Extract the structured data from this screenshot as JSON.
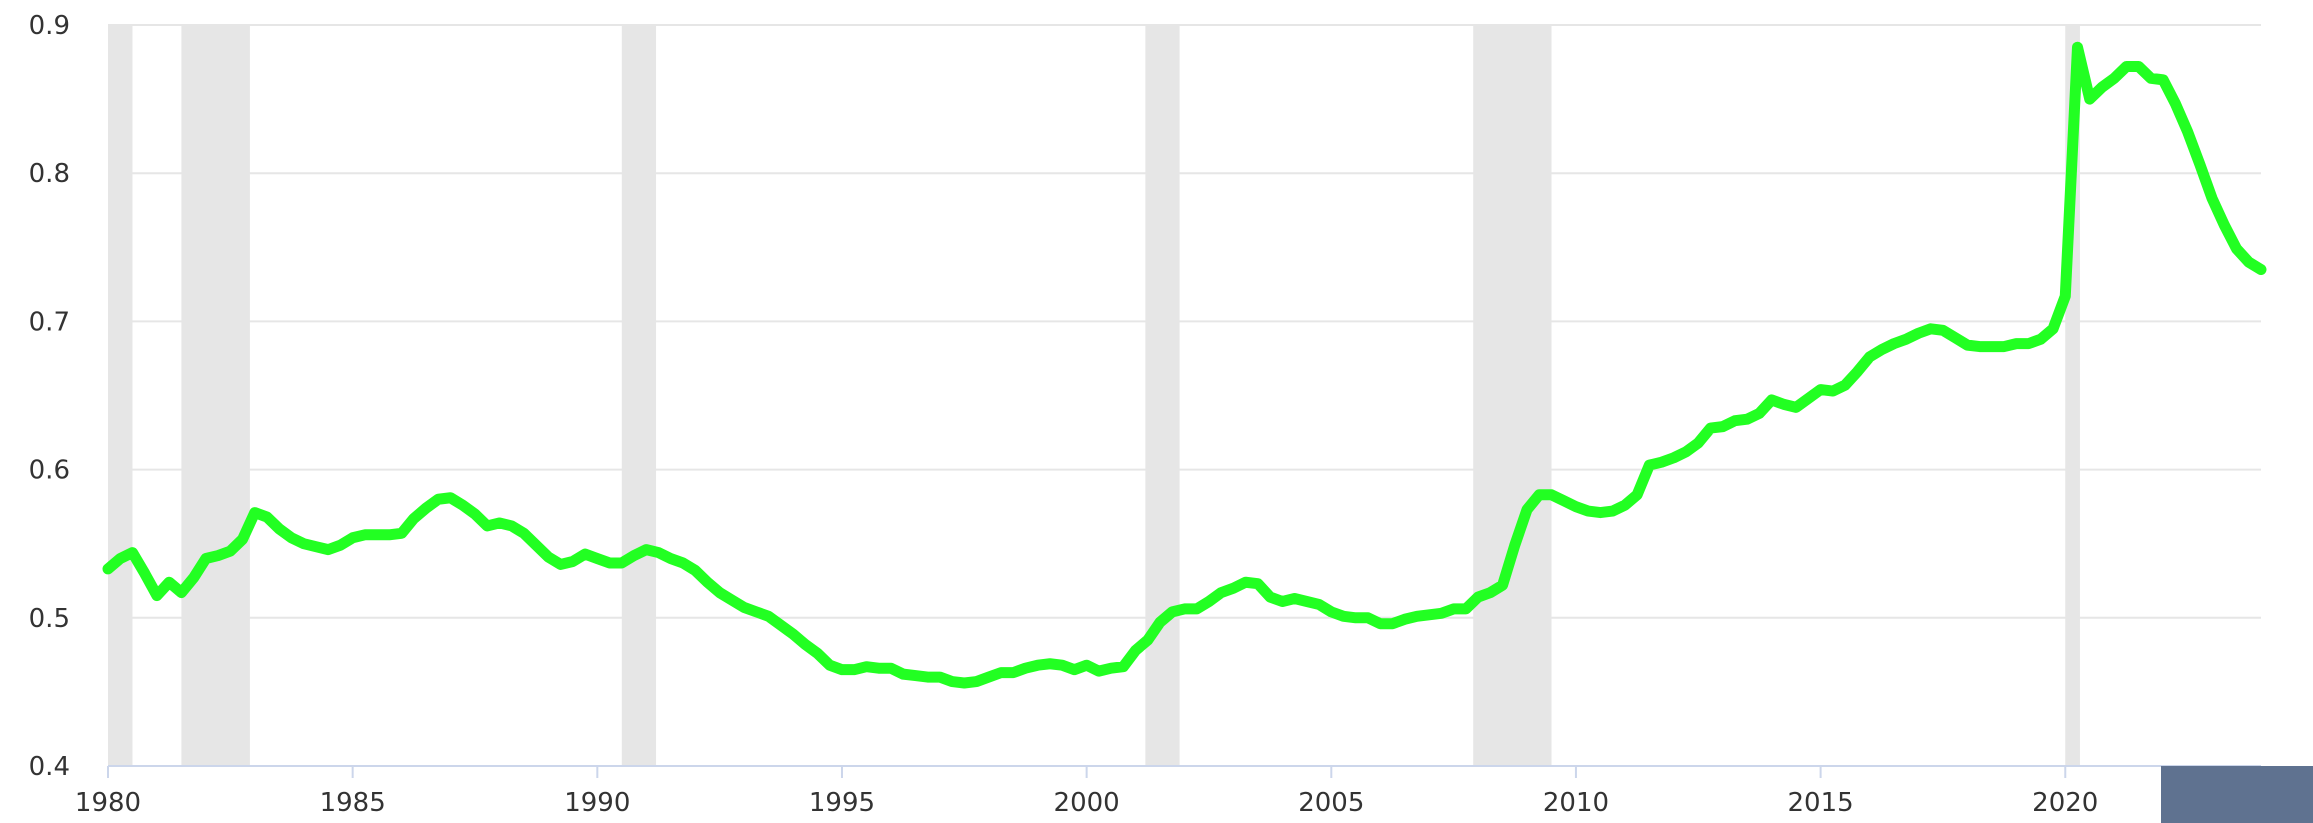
{
  "chart_data": {
    "type": "line",
    "title": "",
    "xlabel": "",
    "ylabel": "",
    "xlim": [
      1980.0,
      2024.0
    ],
    "ylim": [
      0.4,
      0.9
    ],
    "x_ticks": [
      1980,
      1985,
      1990,
      1995,
      2000,
      2005,
      2010,
      2015,
      2020
    ],
    "x_tick_labels": [
      "1980",
      "1985",
      "1990",
      "1995",
      "2000",
      "2005",
      "2010",
      "2015",
      "2020"
    ],
    "y_ticks": [
      0.4,
      0.5,
      0.6,
      0.7,
      0.8,
      0.9
    ],
    "y_tick_labels": [
      "0.4",
      "0.5",
      "0.6",
      "0.7",
      "0.8",
      "0.9"
    ],
    "grid": true,
    "legend": "none",
    "recession_periods": [
      [
        1980.0,
        1980.5
      ],
      [
        1981.5,
        1982.9
      ],
      [
        1990.5,
        1991.2
      ],
      [
        2001.2,
        2001.9
      ],
      [
        2007.9,
        2009.5
      ],
      [
        2020.0,
        2020.3
      ]
    ],
    "series": [
      {
        "color": "#22ff22",
        "x": [
          1980.0,
          1980.25,
          1980.5,
          1980.75,
          1981.0,
          1981.25,
          1981.5,
          1981.75,
          1982.0,
          1982.25,
          1982.5,
          1982.75,
          1983.0,
          1983.25,
          1983.5,
          1983.75,
          1984.0,
          1984.25,
          1984.5,
          1984.75,
          1985.0,
          1985.25,
          1985.5,
          1985.75,
          1986.0,
          1986.25,
          1986.5,
          1986.75,
          1987.0,
          1987.25,
          1987.5,
          1987.75,
          1988.0,
          1988.25,
          1988.5,
          1988.75,
          1989.0,
          1989.25,
          1989.5,
          1989.75,
          1990.0,
          1990.25,
          1990.5,
          1990.75,
          1991.0,
          1991.25,
          1991.5,
          1991.75,
          1992.0,
          1992.25,
          1992.5,
          1992.75,
          1993.0,
          1993.25,
          1993.5,
          1993.75,
          1994.0,
          1994.25,
          1994.5,
          1994.75,
          1995.0,
          1995.25,
          1995.5,
          1995.75,
          1996.0,
          1996.25,
          1996.5,
          1996.75,
          1997.0,
          1997.25,
          1997.5,
          1997.75,
          1998.0,
          1998.25,
          1998.5,
          1998.75,
          1999.0,
          1999.25,
          1999.5,
          1999.75,
          2000.0,
          2000.25,
          2000.5,
          2000.75,
          2001.0,
          2001.25,
          2001.5,
          2001.75,
          2002.0,
          2002.25,
          2002.5,
          2002.75,
          2003.0,
          2003.25,
          2003.5,
          2003.75,
          2004.0,
          2004.25,
          2004.5,
          2004.75,
          2005.0,
          2005.25,
          2005.5,
          2005.75,
          2006.0,
          2006.25,
          2006.5,
          2006.75,
          2007.0,
          2007.25,
          2007.5,
          2007.75,
          2008.0,
          2008.25,
          2008.5,
          2008.75,
          2009.0,
          2009.25,
          2009.5,
          2009.75,
          2010.0,
          2010.25,
          2010.5,
          2010.75,
          2011.0,
          2011.25,
          2011.5,
          2011.75,
          2012.0,
          2012.25,
          2012.5,
          2012.75,
          2013.0,
          2013.25,
          2013.5,
          2013.75,
          2014.0,
          2014.25,
          2014.5,
          2014.75,
          2015.0,
          2015.25,
          2015.5,
          2015.75,
          2016.0,
          2016.25,
          2016.5,
          2016.75,
          2017.0,
          2017.25,
          2017.5,
          2017.75,
          2018.0,
          2018.25,
          2018.5,
          2018.75,
          2019.0,
          2019.25,
          2019.5,
          2019.75,
          2020.0,
          2020.25,
          2020.5,
          2020.75,
          2021.0,
          2021.25,
          2021.5,
          2021.75,
          2022.0,
          2022.25,
          2022.5,
          2022.75,
          2023.0,
          2023.25,
          2023.5,
          2023.75,
          2024.0
        ],
        "values": [
          0.533,
          0.54,
          0.544,
          0.53,
          0.515,
          0.524,
          0.517,
          0.527,
          0.54,
          0.542,
          0.545,
          0.553,
          0.571,
          0.568,
          0.56,
          0.554,
          0.55,
          0.548,
          0.546,
          0.549,
          0.554,
          0.556,
          0.556,
          0.556,
          0.557,
          0.567,
          0.574,
          0.58,
          0.581,
          0.576,
          0.57,
          0.562,
          0.564,
          0.562,
          0.557,
          0.549,
          0.541,
          0.536,
          0.538,
          0.543,
          0.54,
          0.537,
          0.537,
          0.542,
          0.546,
          0.544,
          0.54,
          0.537,
          0.532,
          0.524,
          0.517,
          0.512,
          0.507,
          0.504,
          0.501,
          0.495,
          0.489,
          0.482,
          0.476,
          0.468,
          0.465,
          0.465,
          0.467,
          0.466,
          0.466,
          0.462,
          0.461,
          0.46,
          0.46,
          0.457,
          0.456,
          0.457,
          0.46,
          0.463,
          0.463,
          0.466,
          0.468,
          0.469,
          0.468,
          0.465,
          0.468,
          0.464,
          0.466,
          0.467,
          0.478,
          0.485,
          0.497,
          0.504,
          0.506,
          0.506,
          0.511,
          0.517,
          0.52,
          0.524,
          0.523,
          0.514,
          0.511,
          0.513,
          0.511,
          0.509,
          0.504,
          0.501,
          0.5,
          0.5,
          0.496,
          0.496,
          0.499,
          0.501,
          0.502,
          0.503,
          0.506,
          0.506,
          0.514,
          0.517,
          0.522,
          0.549,
          0.573,
          0.583,
          0.583,
          0.579,
          0.575,
          0.572,
          0.571,
          0.572,
          0.576,
          0.583,
          0.603,
          0.605,
          0.608,
          0.612,
          0.618,
          0.628,
          0.629,
          0.633,
          0.634,
          0.638,
          0.647,
          0.644,
          0.642,
          0.648,
          0.654,
          0.653,
          0.657,
          0.666,
          0.676,
          0.681,
          0.685,
          0.688,
          0.692,
          0.695,
          0.694,
          0.689,
          0.684,
          0.683,
          0.683,
          0.683,
          0.685,
          0.685,
          0.688,
          0.695,
          0.717,
          0.885,
          0.85,
          0.858,
          0.864,
          0.872,
          0.872,
          0.864,
          0.863,
          0.847,
          0.828,
          0.806,
          0.783,
          0.765,
          0.749,
          0.74,
          0.735
        ]
      }
    ]
  }
}
